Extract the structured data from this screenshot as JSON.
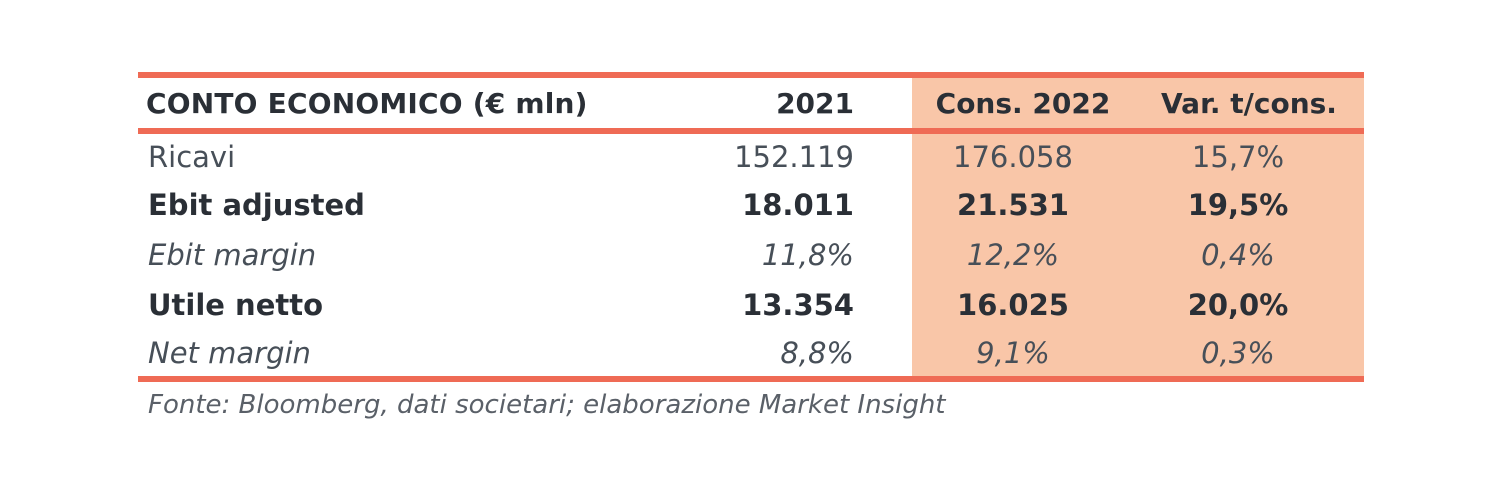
{
  "table": {
    "headers": {
      "label": "CONTO ECONOMICO (€ mln)",
      "y2021": "2021",
      "cons2022": "Cons. 2022",
      "var": "Var. t/cons."
    },
    "rows": [
      {
        "label": "Ricavi",
        "y2021": "152.119",
        "cons2022": "176.058",
        "var": "15,7%",
        "style": "normal"
      },
      {
        "label": "Ebit adjusted",
        "y2021": "18.011",
        "cons2022": "21.531",
        "var": "19,5%",
        "style": "bold"
      },
      {
        "label": "Ebit margin",
        "y2021": "11,8%",
        "cons2022": "12,2%",
        "var": "0,4%",
        "style": "italic"
      },
      {
        "label": "Utile netto",
        "y2021": "13.354",
        "cons2022": "16.025",
        "var": "20,0%",
        "style": "bold"
      },
      {
        "label": "Net margin",
        "y2021": "8,8%",
        "cons2022": "9,1%",
        "var": "0,3%",
        "style": "italic"
      }
    ]
  },
  "source": "Fonte: Bloomberg, dati societari; elaborazione Market Insight",
  "colors": {
    "rule": "#ef6b55",
    "highlight": "#f9c6a8",
    "text": "#3d4650"
  }
}
